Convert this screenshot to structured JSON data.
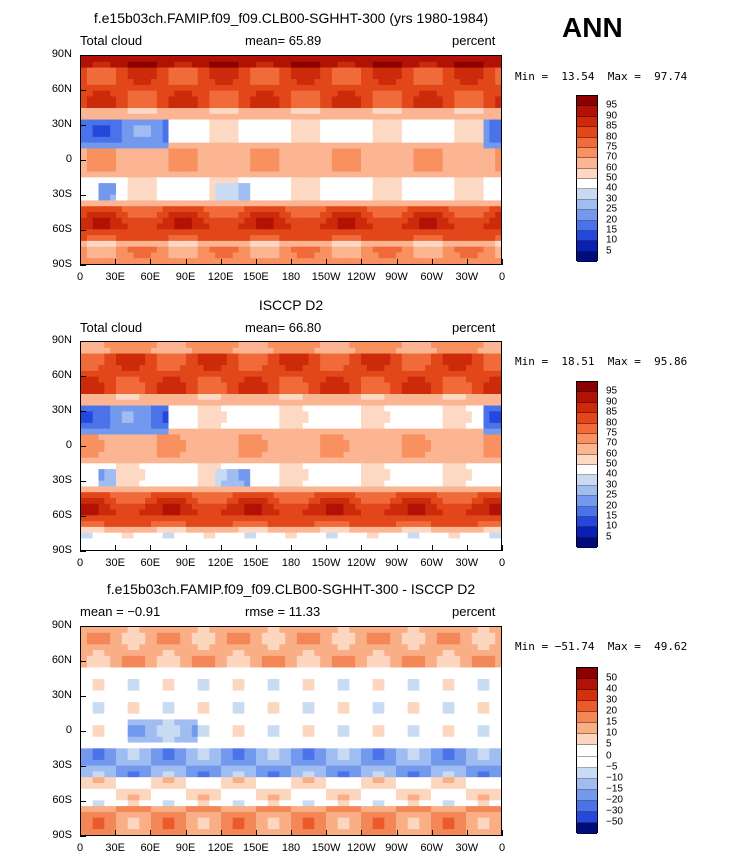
{
  "season": "ANN",
  "panels": [
    {
      "id": "model",
      "title": "f.e15b03ch.FAMIP.f09_f09.CLB00-SGHHT-300 (yrs 1980-1984)",
      "left_label": "Total cloud",
      "center_label": "mean=   65.89",
      "right_label": "percent",
      "minmax": "Min =  13.54  Max =  97.74",
      "scale": "abs"
    },
    {
      "id": "obs",
      "title": "ISCCP D2",
      "left_label": "Total cloud",
      "center_label": "mean=   66.80",
      "right_label": "percent",
      "minmax": "Min =  18.51  Max =  95.86",
      "scale": "abs"
    },
    {
      "id": "diff",
      "title": "f.e15b03ch.FAMIP.f09_f09.CLB00-SGHHT-300 - ISCCP D2",
      "left_label": "mean =  −0.91",
      "center_label": "rmse =   11.33",
      "right_label": "percent",
      "minmax": "Min = −51.74  Max =  49.62",
      "scale": "diff"
    }
  ],
  "chart_data": {
    "type": "heatmap",
    "x_ticks": [
      "0",
      "30E",
      "60E",
      "90E",
      "120E",
      "150E",
      "180",
      "150W",
      "120W",
      "90W",
      "60W",
      "30W",
      "0"
    ],
    "y_ticks": [
      "90N",
      "60N",
      "30N",
      "0",
      "30S",
      "60S",
      "90S"
    ],
    "colorbars": {
      "abs": {
        "levels": [
          "95",
          "90",
          "85",
          "80",
          "75",
          "70",
          "60",
          "50",
          "40",
          "30",
          "25",
          "20",
          "15",
          "10",
          "5"
        ],
        "colors": [
          "#8b0000",
          "#b11205",
          "#cc2a0a",
          "#e2471a",
          "#f06a3a",
          "#f8915f",
          "#fbb593",
          "#fdd9c4",
          "#ffffff",
          "#c9dbf3",
          "#9fbdf0",
          "#7399ee",
          "#4a73ea",
          "#2447dc",
          "#0a1fb3",
          "#000c7a"
        ]
      },
      "diff": {
        "levels": [
          "50",
          "40",
          "30",
          "20",
          "15",
          "10",
          "5",
          "0",
          "−5",
          "−10",
          "−15",
          "−20",
          "−30",
          "−50"
        ],
        "colors": [
          "#8b0000",
          "#b11205",
          "#d3300e",
          "#ec5a2c",
          "#f48757",
          "#f9ae86",
          "#fdd6bf",
          "#ffffff",
          "#ffffff",
          "#c9dbf3",
          "#9fbdf0",
          "#7399ee",
          "#4a73ea",
          "#2447dc",
          "#000c7a"
        ]
      }
    }
  }
}
